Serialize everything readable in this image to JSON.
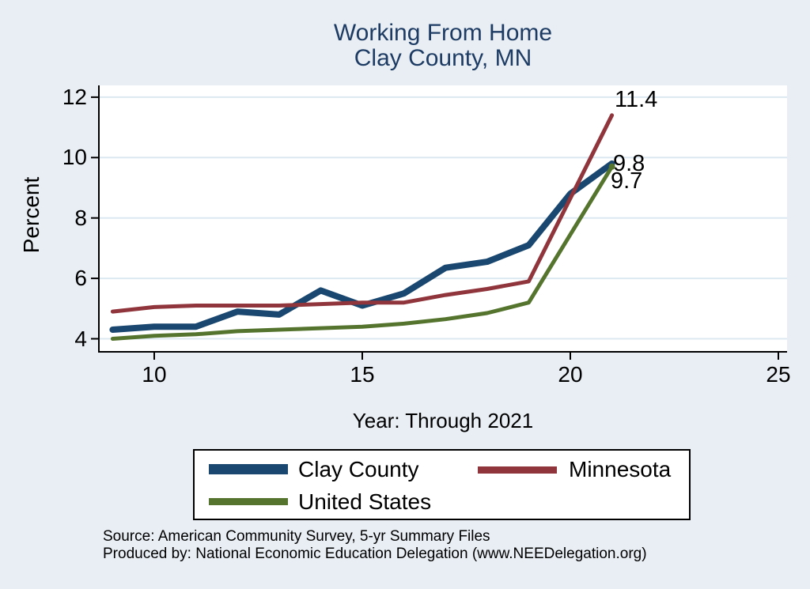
{
  "chart_data": {
    "type": "line",
    "title": "Working From Home",
    "subtitle": "Clay County, MN",
    "xlabel": "Year: Through 2021",
    "ylabel": "Percent",
    "x": [
      9,
      10,
      11,
      12,
      13,
      14,
      15,
      16,
      17,
      18,
      19,
      20,
      21
    ],
    "x_ticks": [
      10,
      15,
      20,
      25
    ],
    "y_ticks": [
      4,
      6,
      8,
      10,
      12
    ],
    "xlim": [
      8.7,
      25.2
    ],
    "ylim": [
      3.6,
      12.4
    ],
    "grid": "horizontal",
    "legend_position": "bottom",
    "series": [
      {
        "name": "Clay County",
        "color": "#1a476f",
        "line_width": 8,
        "values": [
          4.3,
          4.4,
          4.4,
          4.9,
          4.8,
          5.6,
          5.1,
          5.5,
          6.35,
          6.55,
          7.1,
          8.8,
          9.8
        ],
        "end_label": "9.8",
        "end_marker": false
      },
      {
        "name": "Minnesota",
        "color": "#90353b",
        "line_width": 5,
        "values": [
          4.9,
          5.05,
          5.1,
          5.1,
          5.1,
          5.15,
          5.2,
          5.2,
          5.45,
          5.65,
          5.9,
          8.65,
          11.4
        ],
        "end_label": "11.4",
        "end_marker": false
      },
      {
        "name": "United States",
        "color": "#55752f",
        "line_width": 5,
        "values": [
          4.0,
          4.1,
          4.15,
          4.25,
          4.3,
          4.35,
          4.4,
          4.5,
          4.65,
          4.85,
          5.2,
          7.45,
          9.7
        ],
        "end_label": "9.7",
        "end_marker": true
      }
    ]
  },
  "theme": {
    "background": "#e8eef4",
    "plot_background": "#ffffff",
    "gridline_color": "#dce8f1",
    "axis_color": "#000000",
    "title_color": "#1e3c63"
  },
  "footer": {
    "source_line": "Source: American Community Survey, 5-yr Summary Files",
    "produced_line": "Produced by: National Economic Education Delegation (www.NEEDelegation.org)"
  }
}
